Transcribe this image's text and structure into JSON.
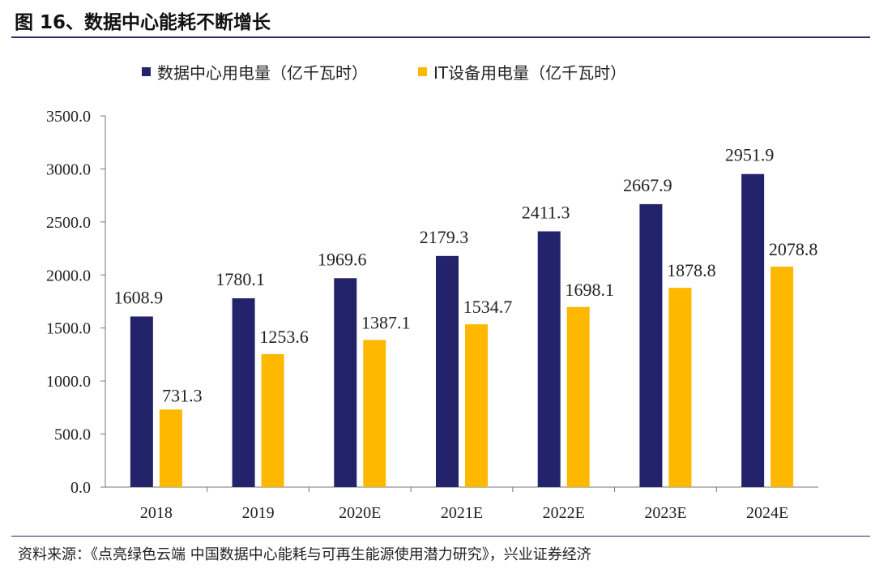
{
  "header": {
    "figure_title": "图 16、数据中心能耗不断增长"
  },
  "legend": [
    {
      "name": "数据中心用电量（亿千瓦时）",
      "color": "#23236b"
    },
    {
      "name": "IT设备用电量（亿千瓦时）",
      "color": "#ffb800"
    }
  ],
  "chart_data": {
    "type": "bar",
    "title": "",
    "xlabel": "",
    "ylabel": "",
    "ylim": [
      0,
      3500
    ],
    "yticks": [
      "0.0",
      "500.0",
      "1000.0",
      "1500.0",
      "2000.0",
      "2500.0",
      "3000.0",
      "3500.0"
    ],
    "ytick_values": [
      0,
      500,
      1000,
      1500,
      2000,
      2500,
      3000,
      3500
    ],
    "categories": [
      "2018",
      "2019",
      "2020E",
      "2021E",
      "2022E",
      "2023E",
      "2024E"
    ],
    "series": [
      {
        "name": "数据中心用电量（亿千瓦时）",
        "color": "#23236b",
        "values": [
          1608.9,
          1780.1,
          1969.6,
          2179.3,
          2411.3,
          2667.9,
          2951.9
        ],
        "labels": [
          "1608.9",
          "1780.1",
          "1969.6",
          "2179.3",
          "2411.3",
          "2667.9",
          "2951.9"
        ]
      },
      {
        "name": "IT设备用电量（亿千瓦时）",
        "color": "#ffb800",
        "values": [
          731.3,
          1253.6,
          1387.1,
          1534.7,
          1698.1,
          1878.8,
          2078.8
        ],
        "labels": [
          "731.3",
          "1253.6",
          "1387.1",
          "1534.7",
          "1698.1",
          "1878.8",
          "2078.8"
        ]
      }
    ],
    "grid": false,
    "legend_position": "top"
  },
  "footer": {
    "source": "资料来源：《点亮绿色云端 中国数据中心能耗与可再生能源使用潜力研究》，兴业证券经济"
  }
}
